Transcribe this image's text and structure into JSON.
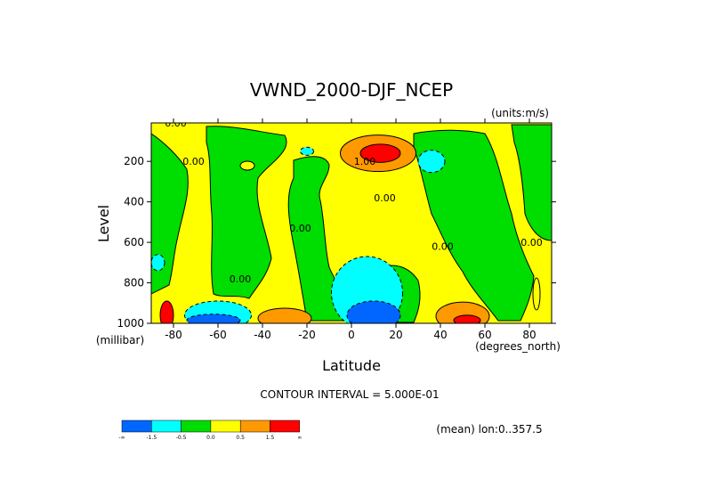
{
  "chart_data": {
    "type": "heatmap",
    "title": "VWND_2000-DJF_NCEP",
    "units": "(units:m/s)",
    "xlabel": "Latitude",
    "ylabel": "Level",
    "x_unit": "(degrees_north)",
    "y_unit": "(millibar)",
    "xlim": [
      -90,
      90
    ],
    "ylim": [
      1000,
      10
    ],
    "y_inverted": true,
    "x_ticks": [
      -80,
      -60,
      -40,
      -20,
      0,
      20,
      40,
      60,
      80
    ],
    "x_tick_labels": [
      "-80",
      "-60",
      "-40",
      "-20",
      "0",
      "20",
      "40",
      "60",
      "80"
    ],
    "y_ticks": [
      200,
      400,
      600,
      800,
      1000
    ],
    "y_tick_labels": [
      "200",
      "400",
      "600",
      "800",
      "1000"
    ],
    "contour_interval_text": "CONTOUR INTERVAL = 5.000E-01",
    "mean_text": "(mean) lon:0..357.5",
    "contour_labels": [
      {
        "text": "0.00",
        "lat": -79,
        "level": 10
      },
      {
        "text": "0.00",
        "lat": -71,
        "level": 200
      },
      {
        "text": "1.00",
        "lat": 6,
        "level": 200
      },
      {
        "text": "0.00",
        "lat": 15,
        "level": 380
      },
      {
        "text": "0.00",
        "lat": -23,
        "level": 530
      },
      {
        "text": "0.00",
        "lat": 41,
        "level": 620
      },
      {
        "text": "0.00",
        "lat": 81,
        "level": 600
      },
      {
        "text": "0.00",
        "lat": -50,
        "level": 780
      }
    ],
    "legend": {
      "bins": [
        {
          "color": "#0066ff",
          "range": "< -1.5"
        },
        {
          "color": "#00ffff",
          "range": "-1.5 to -0.5"
        },
        {
          "color": "#00dd00",
          "range": "-0.5 to 0.0"
        },
        {
          "color": "#ffff00",
          "range": "0.0 to 0.5"
        },
        {
          "color": "#ff9900",
          "range": "0.5 to 1.5"
        },
        {
          "color": "#ff0000",
          "range": "> 1.5"
        }
      ],
      "labels": [
        "-∞",
        "-1.5",
        "-0.5",
        "0.0",
        "0.5",
        "1.5",
        "∞"
      ]
    },
    "regions": [
      {
        "class": "positive",
        "color": "#ff9900",
        "lat_center": 12,
        "level_center": 160,
        "lat_half_width": 17,
        "level_half_span": 90
      },
      {
        "class": "strong_positive",
        "color": "#ff0000",
        "lat_center": 13,
        "level_center": 160,
        "lat_half_width": 9,
        "level_half_span": 45
      },
      {
        "class": "negative",
        "color": "#00ffff",
        "lat_center": 36,
        "level_center": 200,
        "lat_half_width": 6,
        "level_half_span": 55
      },
      {
        "class": "negative",
        "color": "#00ffff",
        "lat_center": -20,
        "level_center": 150,
        "lat_half_width": 3,
        "level_half_span": 20
      },
      {
        "class": "negative",
        "color": "#00ffff",
        "lat_center": 7,
        "level_center": 850,
        "lat_half_width": 16,
        "level_half_span": 180
      },
      {
        "class": "strong_negative",
        "color": "#0066ff",
        "lat_center": 10,
        "level_center": 960,
        "lat_half_width": 12,
        "level_half_span": 70
      },
      {
        "class": "negative",
        "color": "#00ffff",
        "lat_center": -60,
        "level_center": 960,
        "lat_half_width": 15,
        "level_half_span": 70
      },
      {
        "class": "strong_negative",
        "color": "#0066ff",
        "lat_center": -62,
        "level_center": 985,
        "lat_half_width": 12,
        "level_half_span": 30
      },
      {
        "class": "positive",
        "color": "#ff9900",
        "lat_center": -30,
        "level_center": 975,
        "lat_half_width": 12,
        "level_half_span": 50
      },
      {
        "class": "positive",
        "color": "#ff9900",
        "lat_center": 50,
        "level_center": 965,
        "lat_half_width": 12,
        "level_half_span": 70
      },
      {
        "class": "strong_positive",
        "color": "#ff0000",
        "lat_center": 52,
        "level_center": 985,
        "lat_half_width": 6,
        "level_half_span": 25
      },
      {
        "class": "strong_positive",
        "color": "#ff0000",
        "lat_center": -83,
        "level_center": 960,
        "lat_half_width": 3,
        "level_half_span": 70
      },
      {
        "class": "negative",
        "color": "#00ffff",
        "lat_center": -87,
        "level_center": 700,
        "lat_half_width": 3,
        "level_half_span": 40
      }
    ]
  }
}
